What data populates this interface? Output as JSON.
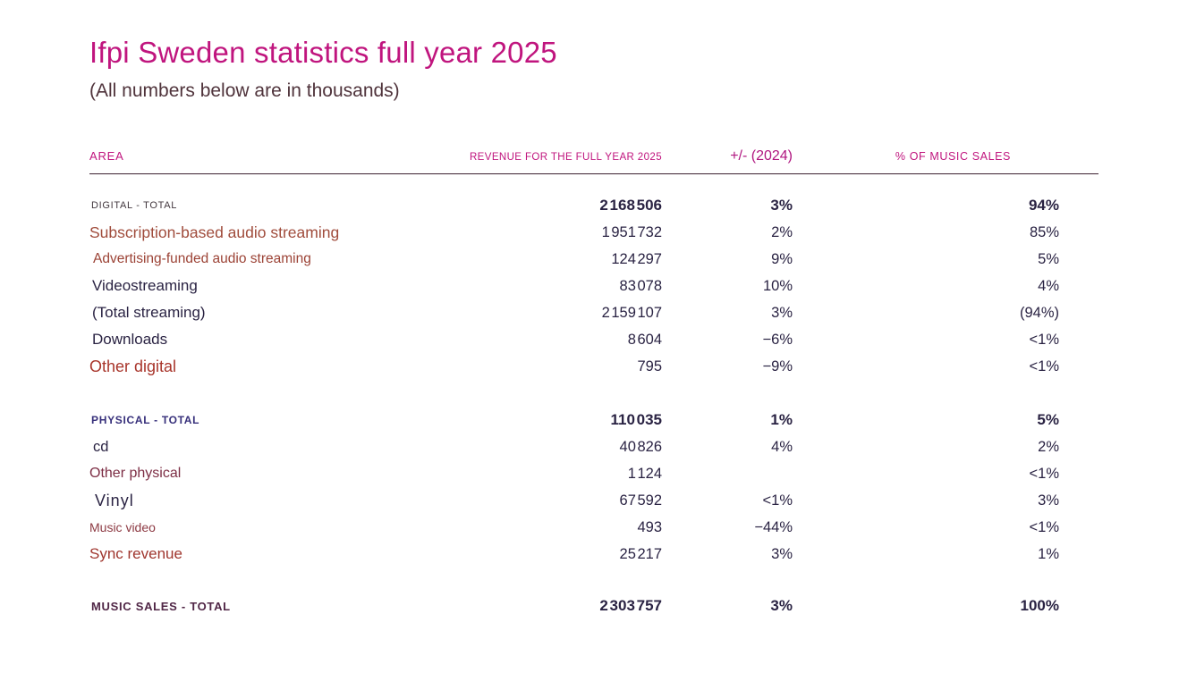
{
  "page": {
    "title": "Ifpi Sweden statistics full year 2025",
    "subtitle": "(All numbers below are in thousands)"
  },
  "colors": {
    "accent_magenta": "#c0157e",
    "ink_dark_navy": "#2a2343",
    "rust": "#a04c3c",
    "brick_red": "#a8352b",
    "maroon": "#7d2e45",
    "indigo": "#37307b",
    "plum": "#502646",
    "subtitle_brown": "#4f333b",
    "rule": "#3b2031"
  },
  "table": {
    "headers": {
      "area": "AREA",
      "revenue": "REVENUE FOR THE FULL YEAR 2025",
      "change": "+/- (2024)",
      "share": "% OF MUSIC SALES"
    },
    "rows": [
      {
        "label": "DIGITAL - TOTAL",
        "revenue": "2 168 506",
        "change": "3%",
        "share": "94%"
      },
      {
        "label": "Subscription-based audio streaming",
        "revenue": "1 951 732",
        "change": "2%",
        "share": "85%"
      },
      {
        "label": "Advertising-funded audio streaming",
        "revenue": "124 297",
        "change": "9%",
        "share": "5%"
      },
      {
        "label": "Videostreaming",
        "revenue": "83 078",
        "change": "10%",
        "share": "4%"
      },
      {
        "label": "(Total streaming)",
        "revenue": "2 159 107",
        "change": "3%",
        "share": "(94%)"
      },
      {
        "label": "Downloads",
        "revenue": "8 604",
        "change": "−6%",
        "share": "<1%"
      },
      {
        "label": "Other digital",
        "revenue": "795",
        "change": "−9%",
        "share": "<1%"
      },
      {
        "label": "PHYSICAL - TOTAL",
        "revenue": "110 035",
        "change": "1%",
        "share": "5%"
      },
      {
        "label": "cd",
        "revenue": "40 826",
        "change": "4%",
        "share": "2%"
      },
      {
        "label": "Other physical",
        "revenue": "1 124",
        "change": "",
        "share": "<1%"
      },
      {
        "label": "Vinyl",
        "revenue": "67 592",
        "change": "<1%",
        "share": "3%"
      },
      {
        "label": "Music video",
        "revenue": "493",
        "change": "−44%",
        "share": "<1%"
      },
      {
        "label": "Sync revenue",
        "revenue": "25 217",
        "change": "3%",
        "share": "1%"
      },
      {
        "label": "MUSIC SALES - TOTAL",
        "revenue": "2 303 757",
        "change": "3%",
        "share": "100%"
      }
    ]
  }
}
